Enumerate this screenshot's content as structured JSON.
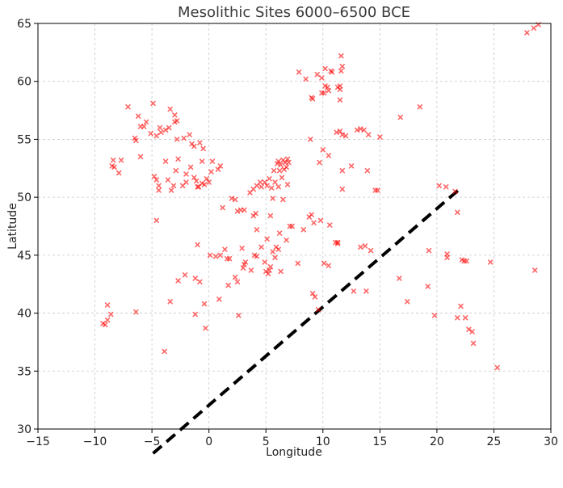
{
  "chart_data": {
    "type": "scatter",
    "title": "Mesolithic Sites 6000–6500 BCE",
    "xlabel": "Longitude",
    "ylabel": "Latitude",
    "xlim": [
      -15,
      30
    ],
    "ylim": [
      30,
      65
    ],
    "xticks": [
      -15,
      -10,
      -5,
      0,
      5,
      10,
      15,
      20,
      25,
      30
    ],
    "yticks": [
      30,
      35,
      40,
      45,
      50,
      55,
      60,
      65
    ],
    "grid": true,
    "marker": "x",
    "marker_color": "#ff0000",
    "line": {
      "style": "dashed",
      "color": "#000000",
      "points": [
        [
          -4.9,
          27.9
        ],
        [
          22.1,
          50.8
        ]
      ]
    },
    "series": [
      {
        "points": [
          [
            -9.3,
            39.1
          ],
          [
            -9.1,
            39.0
          ],
          [
            -8.9,
            39.4
          ],
          [
            -8.9,
            40.7
          ],
          [
            -8.6,
            39.9
          ],
          [
            -6.4,
            40.1
          ],
          [
            -3.9,
            36.7
          ],
          [
            -3.4,
            41.0
          ],
          [
            -4.6,
            48.0
          ],
          [
            -8.5,
            52.7
          ],
          [
            -8.3,
            52.6
          ],
          [
            -8.4,
            53.2
          ],
          [
            -7.9,
            52.1
          ],
          [
            -7.7,
            53.2
          ],
          [
            -7.1,
            57.8
          ],
          [
            -6.5,
            55.1
          ],
          [
            -6.2,
            57.0
          ],
          [
            -6.0,
            56.1
          ],
          [
            -5.7,
            56.1
          ],
          [
            -6.0,
            53.5
          ],
          [
            -6.4,
            54.9
          ],
          [
            -5.5,
            56.5
          ],
          [
            -5.1,
            55.5
          ],
          [
            -4.9,
            58.1
          ],
          [
            -4.6,
            55.3
          ],
          [
            -4.3,
            56.0
          ],
          [
            -4.2,
            55.6
          ],
          [
            -3.8,
            55.8
          ],
          [
            -3.5,
            56.0
          ],
          [
            -3.4,
            57.6
          ],
          [
            -3.0,
            56.5
          ],
          [
            -3.0,
            57.1
          ],
          [
            -2.8,
            56.6
          ],
          [
            -2.8,
            55.0
          ],
          [
            -2.2,
            55.1
          ],
          [
            -1.7,
            55.4
          ],
          [
            -1.5,
            54.6
          ],
          [
            -1.3,
            54.4
          ],
          [
            -0.8,
            54.7
          ],
          [
            -0.5,
            54.2
          ],
          [
            -4.8,
            51.8
          ],
          [
            -4.6,
            51.5
          ],
          [
            -4.4,
            51.0
          ],
          [
            -4.4,
            50.6
          ],
          [
            -3.8,
            53.1
          ],
          [
            -3.6,
            51.5
          ],
          [
            -3.3,
            50.6
          ],
          [
            -3.1,
            51.0
          ],
          [
            -2.9,
            52.3
          ],
          [
            -2.7,
            53.3
          ],
          [
            -2.3,
            51.0
          ],
          [
            -2.0,
            52.0
          ],
          [
            -2.0,
            51.3
          ],
          [
            -1.6,
            52.6
          ],
          [
            -1.3,
            51.7
          ],
          [
            -1.1,
            51.4
          ],
          [
            -0.9,
            50.9
          ],
          [
            -0.6,
            51.2
          ],
          [
            -0.4,
            51.1
          ],
          [
            -0.2,
            51.6
          ],
          [
            0.0,
            51.3
          ],
          [
            0.2,
            52.2
          ],
          [
            0.3,
            53.1
          ],
          [
            0.8,
            52.4
          ],
          [
            1.0,
            52.7
          ],
          [
            -0.6,
            53.1
          ],
          [
            -1.0,
            50.9
          ],
          [
            -1.2,
            43.0
          ],
          [
            -1.0,
            45.9
          ],
          [
            -0.8,
            42.7
          ],
          [
            -2.1,
            43.3
          ],
          [
            -2.7,
            42.8
          ],
          [
            -1.2,
            39.9
          ],
          [
            -0.4,
            40.8
          ],
          [
            -0.3,
            38.7
          ],
          [
            0.1,
            45.0
          ],
          [
            0.6,
            44.9
          ],
          [
            0.9,
            41.2
          ],
          [
            1.0,
            45.0
          ],
          [
            1.4,
            45.5
          ],
          [
            1.6,
            44.7
          ],
          [
            1.8,
            44.7
          ],
          [
            1.7,
            42.4
          ],
          [
            2.3,
            43.1
          ],
          [
            2.5,
            42.7
          ],
          [
            2.6,
            39.8
          ],
          [
            2.9,
            45.6
          ],
          [
            3.1,
            44.2
          ],
          [
            3.0,
            43.9
          ],
          [
            3.2,
            44.4
          ],
          [
            3.7,
            43.7
          ],
          [
            4.0,
            45.0
          ],
          [
            4.2,
            44.9
          ],
          [
            4.6,
            45.7
          ],
          [
            4.9,
            44.4
          ],
          [
            5.0,
            43.6
          ],
          [
            5.2,
            43.4
          ],
          [
            5.4,
            44.0
          ],
          [
            5.6,
            45.3
          ],
          [
            5.8,
            44.8
          ],
          [
            5.9,
            45.7
          ],
          [
            6.1,
            45.5
          ],
          [
            6.3,
            43.6
          ],
          [
            6.8,
            46.3
          ],
          [
            7.1,
            47.5
          ],
          [
            6.2,
            46.9
          ],
          [
            5.3,
            43.7
          ],
          [
            5.1,
            46.4
          ],
          [
            4.2,
            47.2
          ],
          [
            1.2,
            49.1
          ],
          [
            2.0,
            49.9
          ],
          [
            2.3,
            49.8
          ],
          [
            2.5,
            48.8
          ],
          [
            2.8,
            48.9
          ],
          [
            3.1,
            48.9
          ],
          [
            3.6,
            50.4
          ],
          [
            3.9,
            50.7
          ],
          [
            4.2,
            51.0
          ],
          [
            4.1,
            48.6
          ],
          [
            3.9,
            48.4
          ],
          [
            4.5,
            51.3
          ],
          [
            4.6,
            50.9
          ],
          [
            4.9,
            51.3
          ],
          [
            5.1,
            51.0
          ],
          [
            5.3,
            51.6
          ],
          [
            5.5,
            50.8
          ],
          [
            5.7,
            52.3
          ],
          [
            5.8,
            51.3
          ],
          [
            5.6,
            49.9
          ],
          [
            6.0,
            52.9
          ],
          [
            6.1,
            53.1
          ],
          [
            6.2,
            52.3
          ],
          [
            6.3,
            52.8
          ],
          [
            6.5,
            53.2
          ],
          [
            6.6,
            52.4
          ],
          [
            6.7,
            53.0
          ],
          [
            6.8,
            52.6
          ],
          [
            6.9,
            53.3
          ],
          [
            7.0,
            53.0
          ],
          [
            6.4,
            51.7
          ],
          [
            6.1,
            50.9
          ],
          [
            6.5,
            49.8
          ],
          [
            6.9,
            51.1
          ],
          [
            5.4,
            48.4
          ],
          [
            7.3,
            47.5
          ],
          [
            7.8,
            44.3
          ],
          [
            8.3,
            47.2
          ],
          [
            8.8,
            48.3
          ],
          [
            9.0,
            48.5
          ],
          [
            9.2,
            47.8
          ],
          [
            9.1,
            41.7
          ],
          [
            9.3,
            41.4
          ],
          [
            9.6,
            40.3
          ],
          [
            9.8,
            48.0
          ],
          [
            10.1,
            44.3
          ],
          [
            10.5,
            44.1
          ],
          [
            10.6,
            47.6
          ],
          [
            11.1,
            46.1
          ],
          [
            11.3,
            46.0
          ],
          [
            11.3,
            46.1
          ],
          [
            8.9,
            55.0
          ],
          [
            9.0,
            58.6
          ],
          [
            9.1,
            58.5
          ],
          [
            9.5,
            60.6
          ],
          [
            9.9,
            60.3
          ],
          [
            9.9,
            59.0
          ],
          [
            10.1,
            59.0
          ],
          [
            10.2,
            59.6
          ],
          [
            10.4,
            59.5
          ],
          [
            10.5,
            59.2
          ],
          [
            10.7,
            60.9
          ],
          [
            10.8,
            60.8
          ],
          [
            10.2,
            61.1
          ],
          [
            11.3,
            59.5
          ],
          [
            11.5,
            59.6
          ],
          [
            11.5,
            59.3
          ],
          [
            11.5,
            58.4
          ],
          [
            11.6,
            60.9
          ],
          [
            11.7,
            61.3
          ],
          [
            11.6,
            62.2
          ],
          [
            11.2,
            55.6
          ],
          [
            11.5,
            55.7
          ],
          [
            11.7,
            55.4
          ],
          [
            12.0,
            55.3
          ],
          [
            10.5,
            53.6
          ],
          [
            10.0,
            54.1
          ],
          [
            11.7,
            52.3
          ],
          [
            11.7,
            50.7
          ],
          [
            12.5,
            52.7
          ],
          [
            13.0,
            55.8
          ],
          [
            13.3,
            55.9
          ],
          [
            13.6,
            55.8
          ],
          [
            13.9,
            52.3
          ],
          [
            14.0,
            55.4
          ],
          [
            14.6,
            50.6
          ],
          [
            14.8,
            50.6
          ],
          [
            15.0,
            55.2
          ],
          [
            7.9,
            60.8
          ],
          [
            8.5,
            60.2
          ],
          [
            9.7,
            53.0
          ],
          [
            12.7,
            41.9
          ],
          [
            13.3,
            45.7
          ],
          [
            13.7,
            45.8
          ],
          [
            14.2,
            45.4
          ],
          [
            13.8,
            41.9
          ],
          [
            16.8,
            56.9
          ],
          [
            16.7,
            43.0
          ],
          [
            17.4,
            41.0
          ],
          [
            18.5,
            57.8
          ],
          [
            19.2,
            42.3
          ],
          [
            19.3,
            45.4
          ],
          [
            19.8,
            39.8
          ],
          [
            20.2,
            51.0
          ],
          [
            20.8,
            50.9
          ],
          [
            20.9,
            45.1
          ],
          [
            20.9,
            44.8
          ],
          [
            21.6,
            50.5
          ],
          [
            21.8,
            48.7
          ],
          [
            21.8,
            39.6
          ],
          [
            22.1,
            40.6
          ],
          [
            22.2,
            44.6
          ],
          [
            22.4,
            44.5
          ],
          [
            22.5,
            39.6
          ],
          [
            22.6,
            44.5
          ],
          [
            22.8,
            38.6
          ],
          [
            23.2,
            37.4
          ],
          [
            23.1,
            38.4
          ],
          [
            24.7,
            44.4
          ],
          [
            25.3,
            35.3
          ],
          [
            27.9,
            64.2
          ],
          [
            28.5,
            64.6
          ],
          [
            28.9,
            64.9
          ],
          [
            28.6,
            43.7
          ]
        ]
      }
    ]
  }
}
